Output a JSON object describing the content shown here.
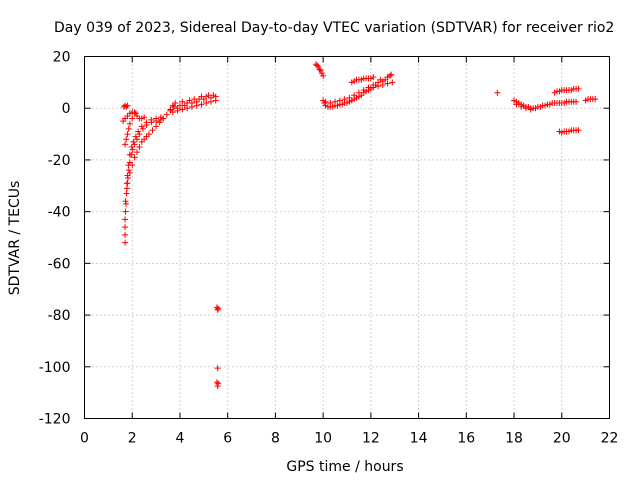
{
  "chart_data": {
    "type": "scatter",
    "title": "Day 039 of 2023, Sidereal Day-to-day VTEC variation (SDTVAR) for receiver rio2",
    "xlabel": "GPS time / hours",
    "ylabel": "SDTVAR / TECUs",
    "xlim": [
      0,
      22
    ],
    "ylim": [
      -120,
      20
    ],
    "xticks": [
      0,
      2,
      4,
      6,
      8,
      10,
      12,
      14,
      16,
      18,
      20,
      22
    ],
    "yticks": [
      20,
      0,
      -20,
      -40,
      -60,
      -80,
      -100,
      -120
    ],
    "grid": true,
    "marker": "+",
    "series": [
      {
        "name": "SDTVAR",
        "color": "#ff0000",
        "points": [
          [
            1.7,
            -52
          ],
          [
            1.7,
            -49
          ],
          [
            1.7,
            -46
          ],
          [
            1.7,
            -43
          ],
          [
            1.72,
            -40
          ],
          [
            1.74,
            -37
          ],
          [
            1.76,
            -33
          ],
          [
            1.78,
            -29
          ],
          [
            1.8,
            -26
          ],
          [
            1.84,
            -22
          ],
          [
            1.9,
            -18
          ],
          [
            1.98,
            -15
          ],
          [
            2.05,
            -13
          ],
          [
            2.15,
            -11
          ],
          [
            2.25,
            -9
          ],
          [
            2.4,
            -7
          ],
          [
            2.6,
            -5.5
          ],
          [
            2.8,
            -4.5
          ],
          [
            3.0,
            -4
          ],
          [
            3.2,
            -3.5
          ],
          [
            1.72,
            -36
          ],
          [
            1.78,
            -31
          ],
          [
            1.82,
            -27
          ],
          [
            1.86,
            -24
          ],
          [
            1.9,
            -21
          ],
          [
            1.96,
            -18
          ],
          [
            2.02,
            -16
          ],
          [
            2.1,
            -14
          ],
          [
            2.2,
            -12
          ],
          [
            2.3,
            -10
          ],
          [
            2.45,
            -8
          ],
          [
            2.6,
            -6.5
          ],
          [
            2.8,
            -5.5
          ],
          [
            3.0,
            -5
          ],
          [
            3.2,
            -4.5
          ],
          [
            1.8,
            -29
          ],
          [
            1.9,
            -25
          ],
          [
            2.0,
            -22
          ],
          [
            2.1,
            -19
          ],
          [
            2.2,
            -17
          ],
          [
            2.3,
            -15
          ],
          [
            2.4,
            -13
          ],
          [
            2.5,
            -12
          ],
          [
            2.6,
            -11
          ],
          [
            2.7,
            -10
          ],
          [
            2.85,
            -8.5
          ],
          [
            3.0,
            -7
          ],
          [
            3.15,
            -5.5
          ],
          [
            3.3,
            -4
          ],
          [
            3.45,
            -2.5
          ],
          [
            3.6,
            -1
          ],
          [
            3.75,
            0.5
          ],
          [
            1.62,
            -5
          ],
          [
            1.7,
            -4
          ],
          [
            1.8,
            -3
          ],
          [
            1.9,
            -2
          ],
          [
            2.0,
            -1.5
          ],
          [
            2.1,
            -1.5
          ],
          [
            2.15,
            -2
          ],
          [
            2.2,
            -3
          ],
          [
            2.3,
            -4
          ],
          [
            2.4,
            -4
          ],
          [
            2.5,
            -3.5
          ],
          [
            1.7,
            -14
          ],
          [
            1.75,
            -12
          ],
          [
            1.8,
            -10
          ],
          [
            1.85,
            -8
          ],
          [
            1.9,
            -6
          ],
          [
            2.0,
            -4
          ],
          [
            1.65,
            0.5
          ],
          [
            1.7,
            1
          ],
          [
            1.75,
            0.5
          ],
          [
            1.8,
            1
          ],
          [
            3.6,
            -0.5
          ],
          [
            3.7,
            1
          ],
          [
            3.8,
            2
          ],
          [
            3.9,
            0
          ],
          [
            4.0,
            1
          ],
          [
            4.1,
            2.5
          ],
          [
            4.2,
            1
          ],
          [
            4.3,
            2
          ],
          [
            4.4,
            3
          ],
          [
            4.5,
            2
          ],
          [
            4.6,
            3.5
          ],
          [
            4.7,
            2.5
          ],
          [
            4.8,
            3.5
          ],
          [
            4.9,
            4.5
          ],
          [
            5.0,
            3.5
          ],
          [
            5.1,
            4.5
          ],
          [
            5.2,
            5
          ],
          [
            5.3,
            4
          ],
          [
            5.4,
            5
          ],
          [
            5.5,
            4.5
          ],
          [
            3.7,
            -1.5
          ],
          [
            3.9,
            -1
          ],
          [
            4.1,
            -0.5
          ],
          [
            4.3,
            0
          ],
          [
            4.5,
            0.5
          ],
          [
            4.7,
            1
          ],
          [
            4.9,
            1.5
          ],
          [
            5.1,
            2
          ],
          [
            5.3,
            2.5
          ],
          [
            5.5,
            3
          ],
          [
            5.55,
            -77
          ],
          [
            5.58,
            -78
          ],
          [
            5.6,
            -77.5
          ],
          [
            5.58,
            -100.5
          ],
          [
            5.55,
            -106
          ],
          [
            5.58,
            -107.5
          ],
          [
            5.6,
            -106.5
          ],
          [
            9.7,
            17
          ],
          [
            9.75,
            16.5
          ],
          [
            9.8,
            16
          ],
          [
            9.85,
            15
          ],
          [
            9.9,
            14.5
          ],
          [
            9.95,
            13.5
          ],
          [
            10.0,
            12.5
          ],
          [
            10.0,
            3
          ],
          [
            10.05,
            2
          ],
          [
            10.1,
            1
          ],
          [
            10.2,
            0.5
          ],
          [
            10.3,
            0.5
          ],
          [
            10.4,
            0.5
          ],
          [
            10.5,
            1
          ],
          [
            10.6,
            1
          ],
          [
            10.7,
            1.5
          ],
          [
            10.8,
            1.5
          ],
          [
            10.9,
            2
          ],
          [
            11.0,
            2
          ],
          [
            11.1,
            2.5
          ],
          [
            11.2,
            3
          ],
          [
            11.3,
            3.5
          ],
          [
            11.4,
            4
          ],
          [
            11.5,
            4.5
          ],
          [
            11.6,
            5
          ],
          [
            11.7,
            6
          ],
          [
            11.8,
            6.5
          ],
          [
            11.9,
            7
          ],
          [
            12.0,
            7.5
          ],
          [
            12.1,
            8
          ],
          [
            12.2,
            9
          ],
          [
            10.1,
            2.5
          ],
          [
            10.3,
            2
          ],
          [
            10.5,
            2.5
          ],
          [
            10.7,
            3
          ],
          [
            10.9,
            3.5
          ],
          [
            11.1,
            4
          ],
          [
            11.3,
            5
          ],
          [
            11.5,
            6
          ],
          [
            11.7,
            7
          ],
          [
            11.9,
            8
          ],
          [
            12.1,
            9
          ],
          [
            11.2,
            10
          ],
          [
            11.3,
            10.5
          ],
          [
            11.4,
            11
          ],
          [
            11.5,
            11
          ],
          [
            11.6,
            11
          ],
          [
            11.7,
            11.5
          ],
          [
            11.8,
            11.5
          ],
          [
            11.9,
            11.5
          ],
          [
            12.0,
            11.5
          ],
          [
            12.1,
            12
          ],
          [
            12.2,
            9
          ],
          [
            12.3,
            10
          ],
          [
            12.4,
            11
          ],
          [
            12.5,
            10.5
          ],
          [
            12.6,
            11
          ],
          [
            12.7,
            12
          ],
          [
            12.8,
            12.5
          ],
          [
            12.85,
            13
          ],
          [
            12.3,
            8.5
          ],
          [
            12.5,
            9
          ],
          [
            12.7,
            9.5
          ],
          [
            12.9,
            10
          ],
          [
            17.3,
            6
          ],
          [
            18.0,
            3
          ],
          [
            18.1,
            2.5
          ],
          [
            18.2,
            2
          ],
          [
            18.3,
            1.5
          ],
          [
            18.4,
            1
          ],
          [
            18.5,
            0.5
          ],
          [
            18.6,
            0.5
          ],
          [
            18.7,
            0
          ],
          [
            18.8,
            0
          ],
          [
            18.9,
            0
          ],
          [
            19.0,
            0.5
          ],
          [
            19.1,
            0.5
          ],
          [
            19.2,
            1
          ],
          [
            19.3,
            1
          ],
          [
            19.4,
            1.5
          ],
          [
            19.5,
            1.5
          ],
          [
            19.6,
            2
          ],
          [
            19.7,
            2
          ],
          [
            19.8,
            2
          ],
          [
            19.9,
            2
          ],
          [
            20.0,
            2
          ],
          [
            20.1,
            2
          ],
          [
            20.2,
            2.5
          ],
          [
            20.3,
            2.5
          ],
          [
            20.4,
            2.5
          ],
          [
            20.5,
            2.5
          ],
          [
            20.6,
            2.5
          ],
          [
            18.1,
            1.5
          ],
          [
            18.3,
            0.5
          ],
          [
            18.5,
            0
          ],
          [
            18.7,
            -0.5
          ],
          [
            19.7,
            6
          ],
          [
            19.8,
            6.5
          ],
          [
            19.9,
            6.5
          ],
          [
            20.0,
            7
          ],
          [
            20.1,
            7
          ],
          [
            20.2,
            7
          ],
          [
            20.3,
            7
          ],
          [
            20.4,
            7
          ],
          [
            20.5,
            7.5
          ],
          [
            20.6,
            7.5
          ],
          [
            20.7,
            7.5
          ],
          [
            19.9,
            -9
          ],
          [
            20.0,
            -9.5
          ],
          [
            20.1,
            -9
          ],
          [
            20.2,
            -9
          ],
          [
            20.3,
            -9
          ],
          [
            20.4,
            -8.5
          ],
          [
            20.5,
            -8.5
          ],
          [
            20.6,
            -8.5
          ],
          [
            20.7,
            -8.5
          ],
          [
            21.0,
            3
          ],
          [
            21.1,
            3.5
          ],
          [
            21.2,
            3.5
          ],
          [
            21.3,
            3.5
          ],
          [
            21.4,
            3.5
          ]
        ]
      }
    ]
  }
}
